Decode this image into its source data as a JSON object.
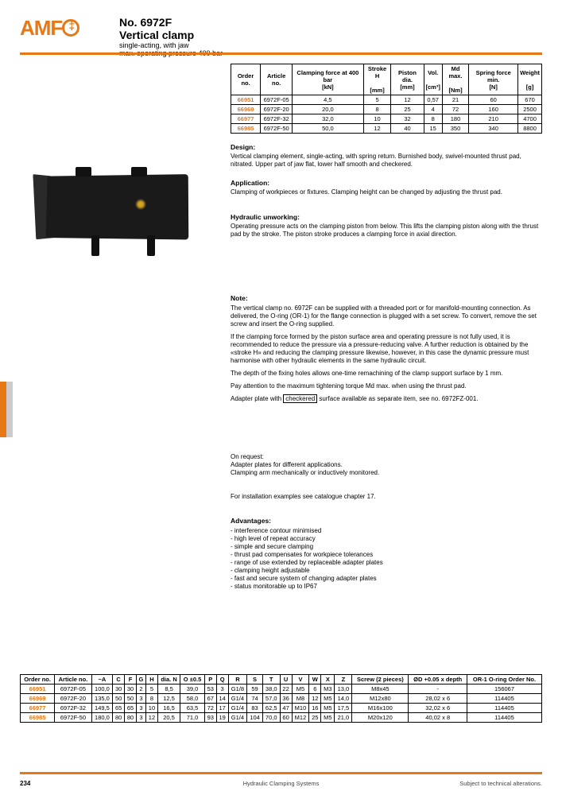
{
  "brand": "AMF",
  "title": {
    "itemno": "No. 6972F",
    "name": "Vertical clamp",
    "sub2": "single-acting, with jaw",
    "sub3": "max. operating pressure 400 bar"
  },
  "table1": {
    "headers": [
      "Order no.",
      "Article no.",
      "Clamping force at 400 bar\n[kN]",
      "Stroke H\n\n[mm]",
      "Piston dia.\n[mm]",
      "Vol.\n\n[cm³]",
      "Md max.\n\n[Nm]",
      "Spring force min.\n[N]",
      "Weight\n\n[g]"
    ],
    "rows": [
      [
        "66951",
        "6972F-05",
        "4,5",
        "5",
        "12",
        "0,57",
        "21",
        "60",
        "670"
      ],
      [
        "66969",
        "6972F-20",
        "20,0",
        "8",
        "25",
        "4",
        "72",
        "160",
        "2500"
      ],
      [
        "66977",
        "6972F-32",
        "32,0",
        "10",
        "32",
        "8",
        "180",
        "210",
        "4700"
      ],
      [
        "66985",
        "6972F-50",
        "50,0",
        "12",
        "40",
        "15",
        "350",
        "340",
        "8800"
      ]
    ]
  },
  "design": {
    "head": "Design:",
    "body": "Vertical clamping element, single-acting, with spring return. Burnished body, swivel-mounted thrust pad, nitrated. Upper part of jaw flat, lower half smooth and checkered."
  },
  "application": {
    "head": "Application:",
    "body": "Clamping of workpieces or fixtures. Clamping height can be changed by adjusting the thrust pad."
  },
  "unwork": {
    "head": "Hydraulic unworking:",
    "body": "Operating pressure acts on the clamping piston from below. This lifts the clamping piston along with the thrust pad by the stroke. The piston stroke produces a clamping force in axial direction."
  },
  "note": {
    "head": "Note:",
    "body1": "The vertical clamp no. 6972F can be supplied with a threaded port or for manifold-mounting connection. As delivered, the O-ring (OR-1) for the flange connection is plugged with a set screw. To convert, remove the set screw and insert the O-ring supplied.",
    "body2": "If the clamping force formed by the piston surface area and operating pressure is not fully used, it is recommended to reduce the pressure via a pressure-reducing valve. A further reduction is obtained by the «stroke H» and reducing the clamping pressure likewise, however, in this case the dynamic pressure must harmonise with other hydraulic elements in the same hydraulic circuit.",
    "body3": "The depth of the fixing holes allows one-time remachining of the clamp support surface by 1 mm.",
    "body4": "Pay attention to the maximum tightening torque Md max. when using the thrust pad.",
    "body5_pre": "Adapter plate with ",
    "body5_boxed": "checkered",
    "body5_post": " surface available as separate item, see no. 6972FZ-001."
  },
  "note_b": {
    "body1": "On request:",
    "body2": "Adapter plates for different applications.",
    "body3": "Clamping arm mechanically or inductively monitored."
  },
  "note_c": {
    "body": "For installation examples see catalogue chapter 17."
  },
  "advantages": {
    "head": "Advantages:",
    "items": [
      "- interference contour minimised",
      "- high level of repeat accuracy",
      "- simple and secure clamping",
      "- thrust pad compensates for workpiece tolerances",
      "- range of use extended by replaceable adapter plates",
      "- clamping height adjustable",
      "- fast and secure system of changing adapter plates",
      "- status monitorable up to IP67"
    ]
  },
  "table2": {
    "headers": [
      "Order no.",
      "Article no.",
      "~A",
      "C",
      "F",
      "G",
      "H",
      "dia. N",
      "O ±0.5",
      "P",
      "Q",
      "R",
      "S",
      "T",
      "U",
      "V",
      "W",
      "X",
      "Z",
      "Screw (2 pieces)",
      "ØD +0.05 x depth",
      "OR-1 O-ring Order No."
    ],
    "rows": [
      [
        "66951",
        "6972F-05",
        "100,0",
        "30",
        "30",
        "2",
        "5",
        "8,5",
        "39,0",
        "53",
        "3",
        "G1/8",
        "59",
        "38,0",
        "22",
        "M5",
        "6",
        "M3",
        "13,0",
        "M8x45",
        "-",
        "156067"
      ],
      [
        "66969",
        "6972F-20",
        "135,0",
        "50",
        "50",
        "3",
        "8",
        "12,5",
        "58,0",
        "67",
        "14",
        "G1/4",
        "74",
        "57,0",
        "36",
        "M8",
        "12",
        "M5",
        "14,0",
        "M12x80",
        "28,02 x 6",
        "114405"
      ],
      [
        "66977",
        "6972F-32",
        "149,5",
        "65",
        "65",
        "3",
        "10",
        "16,5",
        "63,5",
        "72",
        "17",
        "G1/4",
        "83",
        "62,5",
        "47",
        "M10",
        "16",
        "M5",
        "17,5",
        "M16x100",
        "32,02 x 6",
        "114405"
      ],
      [
        "66985",
        "6972F-50",
        "180,0",
        "80",
        "80",
        "3",
        "12",
        "20,5",
        "71,0",
        "93",
        "19",
        "G1/4",
        "104",
        "70,0",
        "60",
        "M12",
        "25",
        "M5",
        "21,0",
        "M20x120",
        "40,02 x 8",
        "114405"
      ]
    ]
  },
  "pagenum": "234",
  "footer_center": "Hydraulic Clamping Systems",
  "footer_right": "Subject to technical alterations.",
  "colors": {
    "accent": "#e67817"
  }
}
